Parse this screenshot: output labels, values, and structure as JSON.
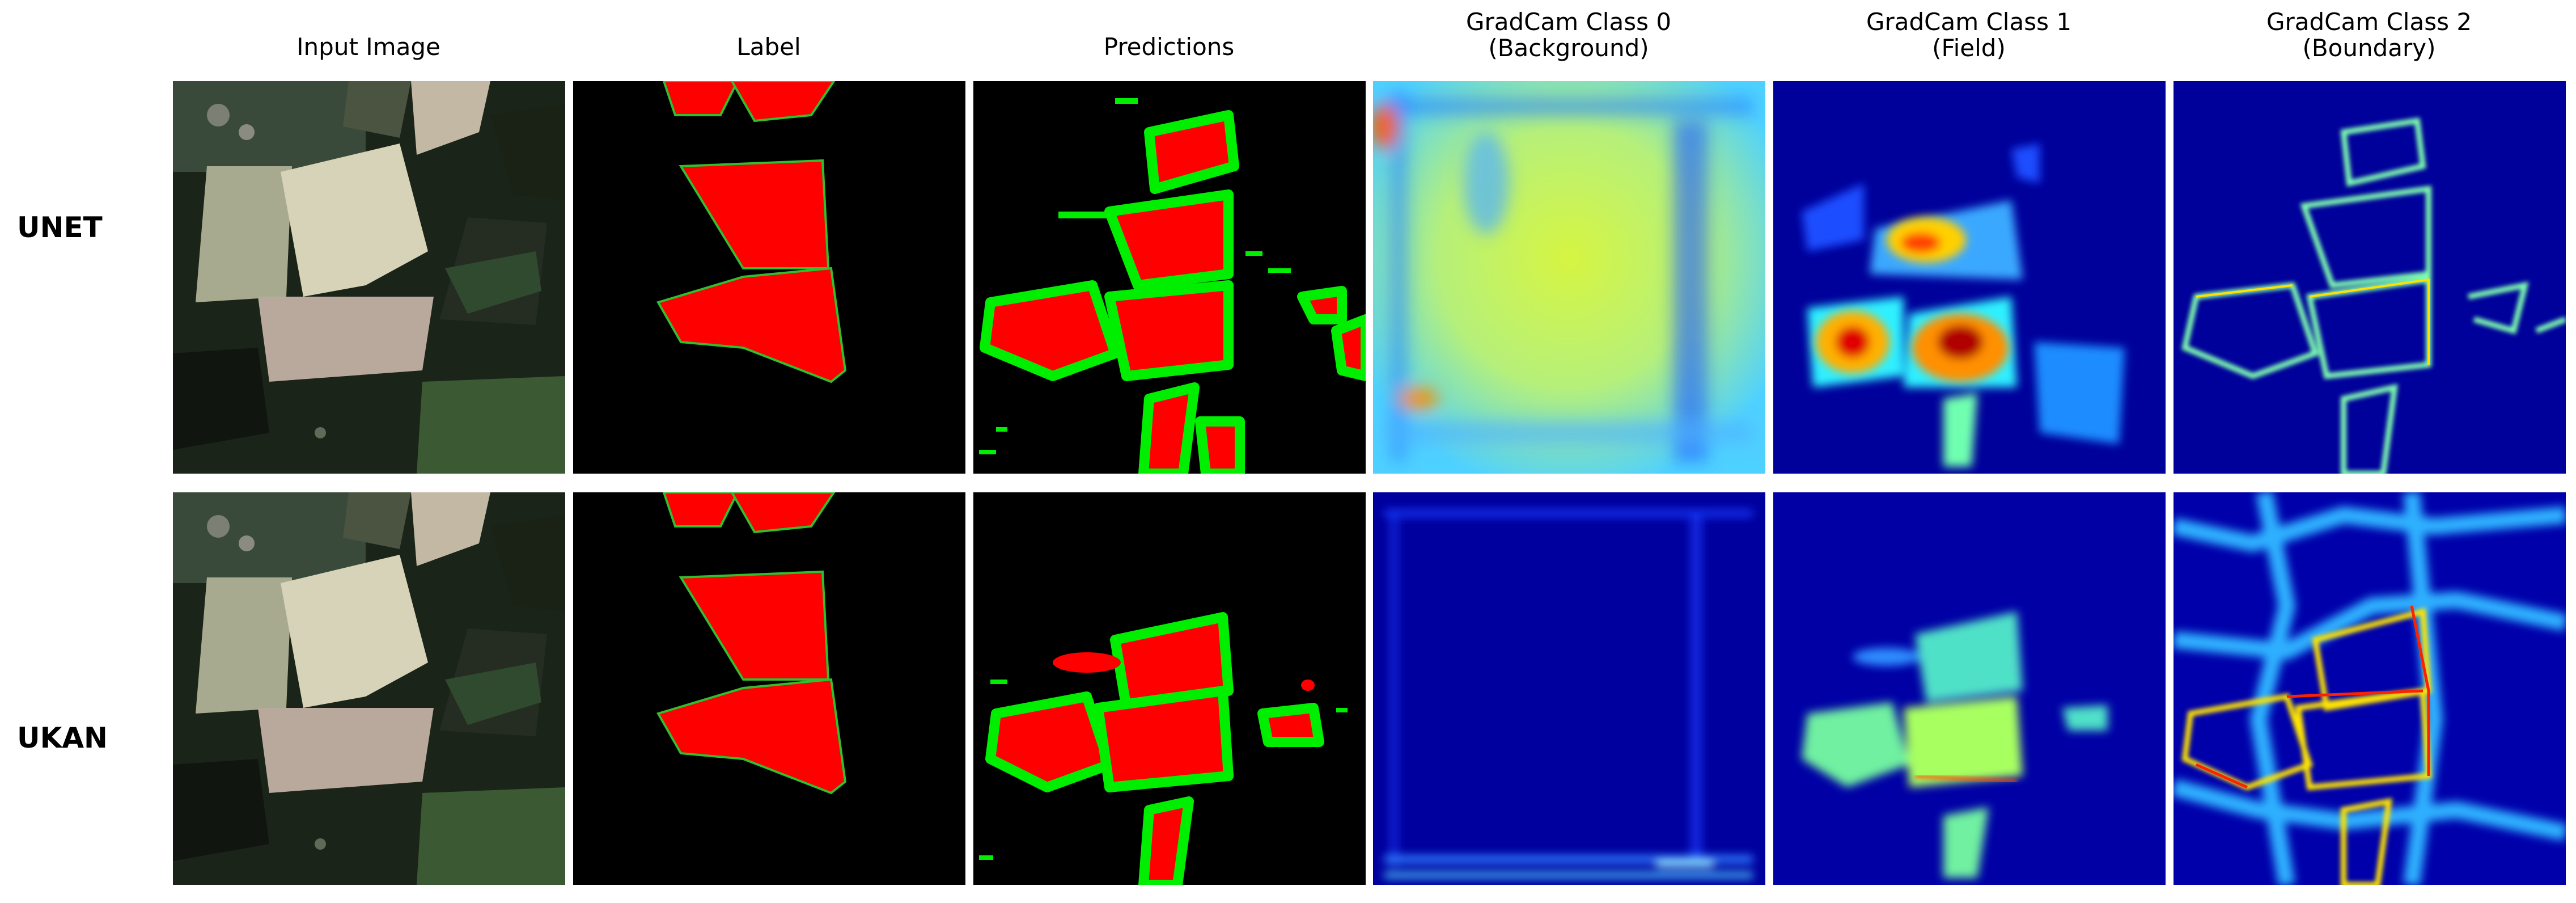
{
  "columns": [
    {
      "title": "Input Image"
    },
    {
      "title": "Label"
    },
    {
      "title": "Predictions"
    },
    {
      "title": "GradCam Class 0\n(Background)"
    },
    {
      "title": "GradCam Class 1\n(Field)"
    },
    {
      "title": "GradCam Class 2\n(Boundary)"
    }
  ],
  "rows": [
    {
      "label": "UNET"
    },
    {
      "label": "UKAN"
    }
  ],
  "colors": {
    "field": "#ff0000",
    "boundary": "#00ee00",
    "background": "#000000",
    "jet_low": "#00008f",
    "jet_mid": "#7fff7f",
    "jet_high": "#800000"
  }
}
